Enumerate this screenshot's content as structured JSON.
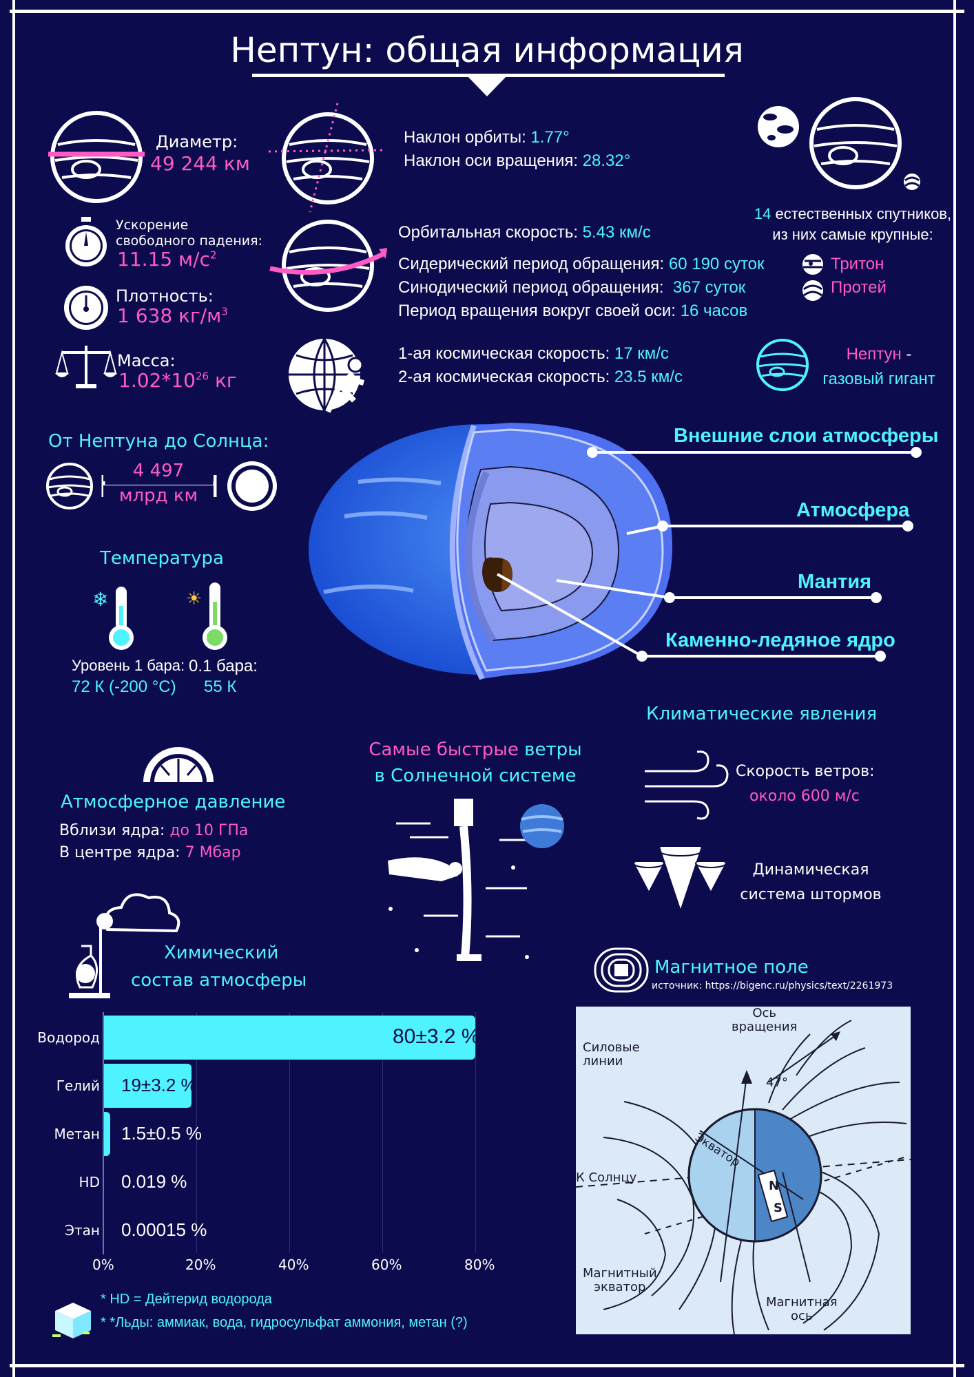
{
  "title": "Нептун: общая информация",
  "diameter": {
    "label": "Диаметр:",
    "value": "49 244 км"
  },
  "gravity": {
    "label1": "Ускорение",
    "label2": "свободного падения:",
    "value": "11.15 м/с",
    "unit_sup": "2"
  },
  "density": {
    "label": "Плотность:",
    "value": "1 638 кг/м",
    "unit_sup": "3"
  },
  "mass": {
    "label": "Масса:",
    "mantissa": "1.02*10",
    "exp": "26",
    "unit": " кг"
  },
  "orbit": {
    "incl_label": "Наклон орбиты: ",
    "incl_value": "1.77°",
    "axis_label": "Наклон оси вращения: ",
    "axis_value": "28.32°",
    "speed_label": "Орбитальная скорость: ",
    "speed_value": "5.43 км/с",
    "sidereal_label": "Сидерический период обращения: ",
    "sidereal_value": "60 190 суток",
    "synodic_label": "Синодический период обращения:  ",
    "synodic_value": "367 суток",
    "rotation_label": "Период вращения вокруг своей оси: ",
    "rotation_value": "16 часов",
    "cosmic1_label": "1-ая космическая скорость: ",
    "cosmic1_value": "17 км/с",
    "cosmic2_label": "2-ая космическая скорость: ",
    "cosmic2_value": "23.5 км/с"
  },
  "moons": {
    "count": "14",
    "text1": " естественных спутников,",
    "text2": "из них самые крупные:",
    "moon1": "Тритон",
    "moon2": "Протей"
  },
  "gas_giant": {
    "name": "Нептун",
    "dash": " -",
    "text": "газовый гигант"
  },
  "sun_distance": {
    "title": "От Нептуна до Солнца:",
    "value1": "4 497",
    "value2": "млрд км"
  },
  "temperature": {
    "title": "Температура",
    "level1_label": "Уровень 1 бара:",
    "level1_value": "72 К (-200 °С)",
    "level2_label": "0.1 бара:",
    "level2_value": "55 К"
  },
  "layers": [
    "Внешние слои атмосферы",
    "Атмосфера",
    "Мантия",
    "Каменно-ледяное ядро"
  ],
  "climate": {
    "title": "Климатические явления",
    "wind_label": "Скорость ветров:",
    "wind_value": "около 600 м/с",
    "storm1": "Динамическая",
    "storm2": "система штормов"
  },
  "winds": {
    "part1": "Самые быстрые",
    "part2": " ветры",
    "part3": "в Солнечной системе"
  },
  "pressure": {
    "title": "Атмосферное давление",
    "near_label": "Вблизи ядра: ",
    "near_value": "до 10 ГПа",
    "center_label": "В центре ядра: ",
    "center_value": "7 Мбар"
  },
  "chemical": {
    "title1": "Химический",
    "title2": "состав атмосферы"
  },
  "magnetic": {
    "title": "Магнитное поле",
    "source": "источник: https://bigenc.ru/physics/text/2261973",
    "axis_label1": "Ось",
    "axis_label2": "вращения",
    "angle": "47°",
    "field_label1": "Силовые",
    "field_label2": "линии",
    "equator": "Экватор",
    "sun": "К Солнцу",
    "mag_eq1": "Магнитный",
    "mag_eq2": "экватор",
    "mag_axis1": "Магнитная",
    "mag_axis2": "ось",
    "north": "N",
    "south": "S"
  },
  "chart_data": {
    "type": "bar",
    "orientation": "horizontal",
    "categories": [
      "Водород",
      "Гелий",
      "Метан",
      "HD",
      "Этан"
    ],
    "values": [
      80,
      19,
      1.5,
      0.019,
      0.00015
    ],
    "value_labels": [
      "80±3.2 %",
      "19±3.2 %",
      "1.5±0.5 %",
      "0.019 %",
      "0.00015 %"
    ],
    "xlim": [
      0,
      80
    ],
    "x_ticks": [
      "0%",
      "20%",
      "40%",
      "60%",
      "80%"
    ],
    "grid": true,
    "color": "#4ff3ff"
  },
  "footnotes": [
    "* HD = Дейтерид водорода",
    "* *Льды: аммиак, вода, гидросульфат аммония, метан (?)"
  ]
}
